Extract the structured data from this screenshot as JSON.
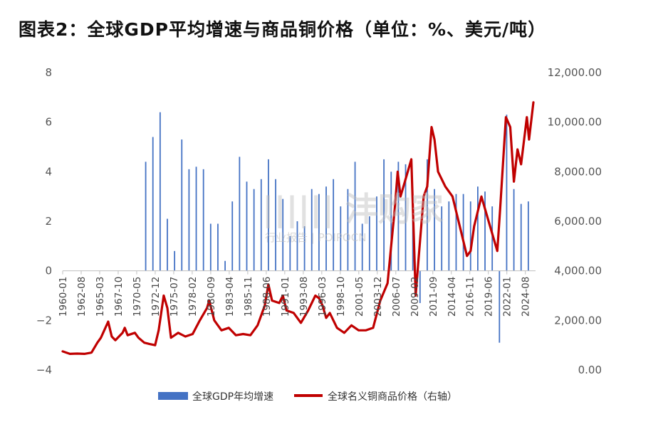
{
  "title": "图表2：全球GDP平均增速与商品铜价格（单位：%、美元/吨）",
  "watermark": {
    "main": "|||||| 沣购家",
    "sub": "行业报告 | POIPOCN"
  },
  "colors": {
    "bar": "#4472c4",
    "line": "#c00000",
    "axis": "#bfbfbf",
    "text": "#555555"
  },
  "chart_data": {
    "type": "bar+line",
    "x_tick_labels": [
      "1960-01",
      "1962-08",
      "1965-03",
      "1967-10",
      "1970-05",
      "1972-12",
      "1975-07",
      "1978-02",
      "1980-09",
      "1983-04",
      "1985-11",
      "1988-06",
      "1991-01",
      "1993-08",
      "1996-03",
      "1998-10",
      "2001-05",
      "2003-12",
      "2006-07",
      "2009-02",
      "2011-09",
      "2014-04",
      "2016-11",
      "2019-06",
      "2022-01",
      "2024-08"
    ],
    "x_range": [
      1960.0,
      2025.5
    ],
    "y_left": {
      "ticks": [
        8,
        6,
        4,
        2,
        0,
        -2,
        -4
      ],
      "range": [
        -4,
        8
      ]
    },
    "y_right": {
      "ticks": [
        "12,000.00",
        "10,000.00",
        "8,000.00",
        "6,000.00",
        "4,000.00",
        "2,000.00",
        "0.00"
      ],
      "range": [
        0,
        12000
      ]
    },
    "legend": {
      "position": "bottom"
    },
    "series": [
      {
        "name": "全球GDP年均增速",
        "type": "bar",
        "axis": "left",
        "x": [
          1971,
          1972,
          1973,
          1974,
          1975,
          1976,
          1977,
          1978,
          1979,
          1980,
          1981,
          1982,
          1983,
          1984,
          1985,
          1986,
          1987,
          1988,
          1989,
          1990,
          1991,
          1992,
          1993,
          1994,
          1995,
          1996,
          1997,
          1998,
          1999,
          2000,
          2001,
          2002,
          2003,
          2004,
          2005,
          2006,
          2007,
          2008,
          2009,
          2010,
          2011,
          2012,
          2013,
          2014,
          2015,
          2016,
          2017,
          2018,
          2019,
          2020,
          2021,
          2022,
          2023,
          2024
        ],
        "values": [
          4.4,
          5.4,
          6.4,
          2.1,
          0.8,
          5.3,
          4.1,
          4.2,
          4.1,
          1.9,
          1.9,
          0.4,
          2.8,
          4.6,
          3.6,
          3.3,
          3.7,
          4.5,
          3.7,
          2.9,
          1.4,
          2.0,
          1.8,
          3.3,
          3.1,
          3.4,
          3.7,
          2.6,
          3.3,
          4.4,
          1.9,
          2.2,
          3.0,
          4.5,
          4.0,
          4.4,
          4.3,
          2.1,
          -1.3,
          4.5,
          3.3,
          2.6,
          2.8,
          3.1,
          3.1,
          2.8,
          3.4,
          3.2,
          2.6,
          -2.9,
          6.3,
          3.3,
          2.7,
          2.8
        ]
      },
      {
        "name": "全球名义铜商品价格（右轴）",
        "type": "line",
        "axis": "right",
        "points": [
          [
            1960.0,
            750
          ],
          [
            1961.0,
            650
          ],
          [
            1962.0,
            660
          ],
          [
            1963.0,
            650
          ],
          [
            1964.0,
            700
          ],
          [
            1964.8,
            1100
          ],
          [
            1965.3,
            1300
          ],
          [
            1966.3,
            1950
          ],
          [
            1966.8,
            1350
          ],
          [
            1967.3,
            1200
          ],
          [
            1968.3,
            1500
          ],
          [
            1968.6,
            1700
          ],
          [
            1969.0,
            1400
          ],
          [
            1970.0,
            1500
          ],
          [
            1970.5,
            1300
          ],
          [
            1971.3,
            1100
          ],
          [
            1972.0,
            1050
          ],
          [
            1972.8,
            1000
          ],
          [
            1973.3,
            1600
          ],
          [
            1974.0,
            3000
          ],
          [
            1974.5,
            2500
          ],
          [
            1975.0,
            1300
          ],
          [
            1976.0,
            1500
          ],
          [
            1977.0,
            1350
          ],
          [
            1978.0,
            1450
          ],
          [
            1979.0,
            2000
          ],
          [
            1980.0,
            2500
          ],
          [
            1980.3,
            2800
          ],
          [
            1981.0,
            2000
          ],
          [
            1982.0,
            1600
          ],
          [
            1983.0,
            1700
          ],
          [
            1984.0,
            1400
          ],
          [
            1985.0,
            1450
          ],
          [
            1986.0,
            1400
          ],
          [
            1987.0,
            1800
          ],
          [
            1988.0,
            2600
          ],
          [
            1988.5,
            3450
          ],
          [
            1989.0,
            2800
          ],
          [
            1990.0,
            2700
          ],
          [
            1990.5,
            3000
          ],
          [
            1991.0,
            2400
          ],
          [
            1992.0,
            2300
          ],
          [
            1993.0,
            1900
          ],
          [
            1994.0,
            2400
          ],
          [
            1995.0,
            3000
          ],
          [
            1995.5,
            2900
          ],
          [
            1996.0,
            2600
          ],
          [
            1996.5,
            2100
          ],
          [
            1997.0,
            2300
          ],
          [
            1998.0,
            1700
          ],
          [
            1999.0,
            1500
          ],
          [
            2000.0,
            1800
          ],
          [
            2001.0,
            1600
          ],
          [
            2002.0,
            1600
          ],
          [
            2003.0,
            1700
          ],
          [
            2004.0,
            2800
          ],
          [
            2005.0,
            3500
          ],
          [
            2006.0,
            6500
          ],
          [
            2006.4,
            8000
          ],
          [
            2006.8,
            7000
          ],
          [
            2007.3,
            7500
          ],
          [
            2008.3,
            8500
          ],
          [
            2008.9,
            3000
          ],
          [
            2009.3,
            4500
          ],
          [
            2010.0,
            7000
          ],
          [
            2010.5,
            7400
          ],
          [
            2011.1,
            9800
          ],
          [
            2011.5,
            9300
          ],
          [
            2012.0,
            8000
          ],
          [
            2013.0,
            7400
          ],
          [
            2014.0,
            7000
          ],
          [
            2015.0,
            5800
          ],
          [
            2016.0,
            4600
          ],
          [
            2016.5,
            4800
          ],
          [
            2017.0,
            5800
          ],
          [
            2018.0,
            7000
          ],
          [
            2019.0,
            6000
          ],
          [
            2020.2,
            4800
          ],
          [
            2020.6,
            6500
          ],
          [
            2021.4,
            10200
          ],
          [
            2022.0,
            9800
          ],
          [
            2022.5,
            7600
          ],
          [
            2023.0,
            8900
          ],
          [
            2023.5,
            8300
          ],
          [
            2024.3,
            10200
          ],
          [
            2024.6,
            9300
          ],
          [
            2025.2,
            10800
          ]
        ]
      }
    ]
  }
}
